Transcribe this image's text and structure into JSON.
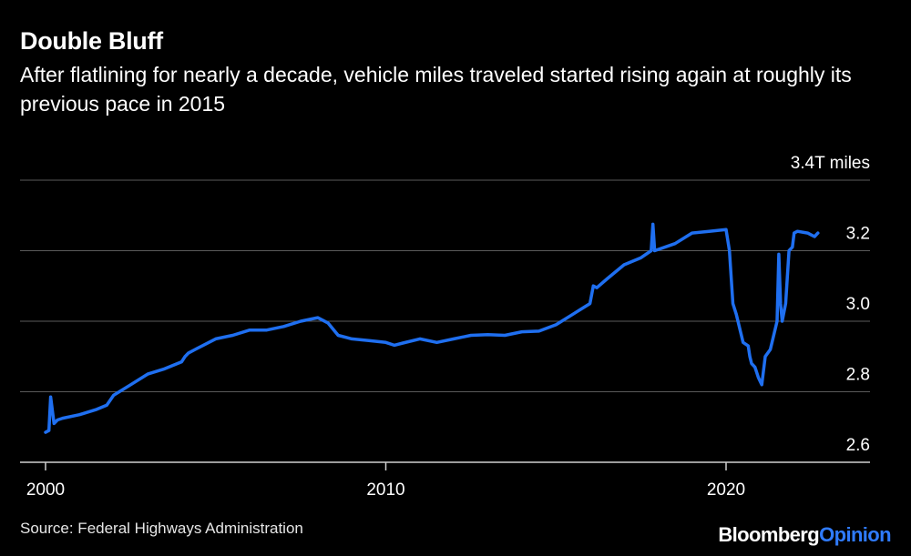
{
  "header": {
    "title": "Double Bluff",
    "subtitle": "After flatlining for nearly a decade, vehicle miles traveled started rising again at roughly its previous pace in 2015"
  },
  "footer": {
    "source": "Source: Federal Highways Administration",
    "brand_primary": "Bloomberg",
    "brand_secondary": "Opinion"
  },
  "colors": {
    "line": "#1f6ff0",
    "grid": "#5a5a5a",
    "accent": "#2f7bff"
  },
  "chart_data": {
    "type": "line",
    "title": "Double Bluff",
    "xlabel": "",
    "ylabel": "",
    "unit_label": "3.4T miles",
    "xlim": [
      1999.8,
      2023.8
    ],
    "ylim": [
      2.6,
      3.4
    ],
    "x_ticks": [
      {
        "value": 2000,
        "label": "2000"
      },
      {
        "value": 2010,
        "label": "2010"
      },
      {
        "value": 2020,
        "label": "2020"
      }
    ],
    "y_ticks": [
      {
        "value": 2.6,
        "label": "2.6"
      },
      {
        "value": 2.8,
        "label": "2.8"
      },
      {
        "value": 3.0,
        "label": "3.0"
      },
      {
        "value": 3.2,
        "label": "3.2"
      },
      {
        "value": 3.4,
        "label": "3.4T miles"
      }
    ],
    "series": [
      {
        "name": "Vehicle miles traveled (trillions)",
        "x": [
          2000.0,
          2000.1,
          2000.15,
          2000.25,
          2000.35,
          2000.5,
          2001.0,
          2001.5,
          2001.8,
          2002.0,
          2002.5,
          2003.0,
          2003.5,
          2004.0,
          2004.1,
          2004.2,
          2004.4,
          2005.0,
          2005.5,
          2006.0,
          2006.5,
          2007.0,
          2007.5,
          2008.0,
          2008.3,
          2008.6,
          2009.0,
          2009.5,
          2010.0,
          2010.25,
          2010.5,
          2011.0,
          2011.5,
          2012.0,
          2012.5,
          2013.0,
          2013.5,
          2014.0,
          2014.5,
          2015.0,
          2015.5,
          2016.0,
          2016.1,
          2016.2,
          2016.5,
          2017.0,
          2017.5,
          2017.8,
          2017.85,
          2017.9,
          2018.5,
          2019.0,
          2019.5,
          2020.0,
          2020.1,
          2020.2,
          2020.3,
          2020.5,
          2020.65,
          2020.7,
          2020.75,
          2020.85,
          2020.95,
          2021.05,
          2021.15,
          2021.3,
          2021.5,
          2021.55,
          2021.6,
          2021.65,
          2021.75,
          2021.85,
          2021.95,
          2022.0,
          2022.1,
          2022.4,
          2022.6,
          2022.7
        ],
        "values": [
          2.685,
          2.69,
          2.785,
          2.71,
          2.72,
          2.725,
          2.735,
          2.75,
          2.762,
          2.79,
          2.82,
          2.85,
          2.865,
          2.885,
          2.9,
          2.91,
          2.92,
          2.95,
          2.96,
          2.975,
          2.975,
          2.985,
          3.0,
          3.01,
          2.995,
          2.96,
          2.95,
          2.945,
          2.94,
          2.932,
          2.938,
          2.95,
          2.94,
          2.95,
          2.96,
          2.962,
          2.96,
          2.97,
          2.972,
          2.99,
          3.02,
          3.05,
          3.1,
          3.095,
          3.12,
          3.16,
          3.18,
          3.2,
          3.275,
          3.2,
          3.22,
          3.25,
          3.255,
          3.26,
          3.2,
          3.05,
          3.02,
          2.94,
          2.93,
          2.9,
          2.88,
          2.87,
          2.84,
          2.82,
          2.9,
          2.92,
          3.0,
          3.19,
          3.05,
          3.0,
          3.05,
          3.2,
          3.21,
          3.25,
          3.255,
          3.25,
          3.24,
          3.25
        ]
      }
    ]
  }
}
